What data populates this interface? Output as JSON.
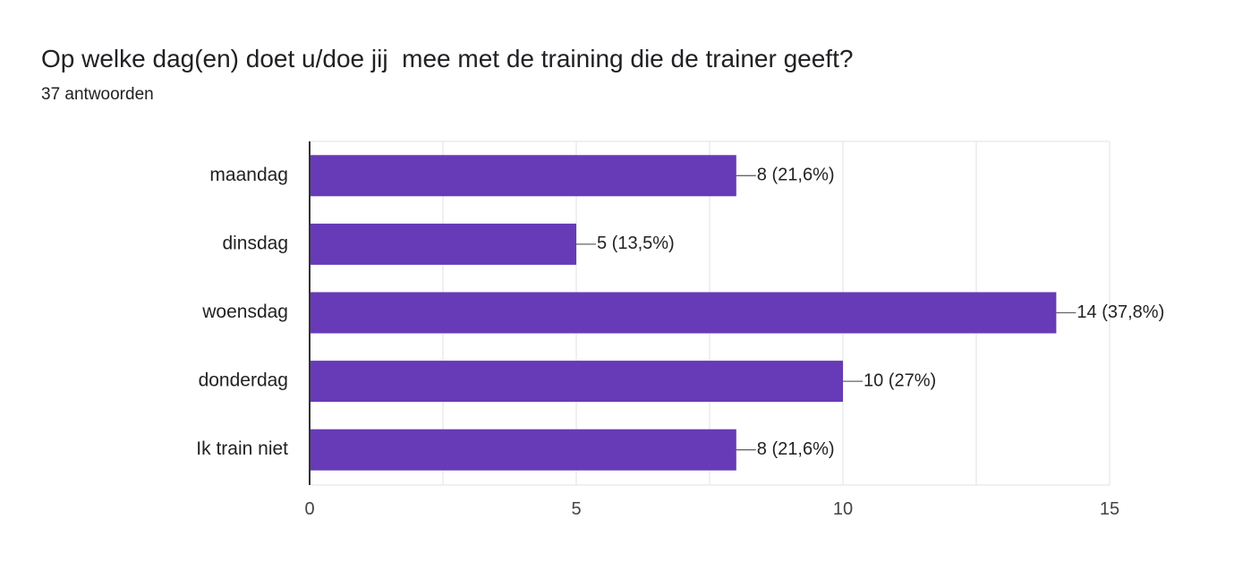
{
  "question": {
    "title": "Op welke dag(en) doet u/doe jij  mee met de training die de trainer geeft?",
    "responses": "37 antwoorden"
  },
  "colors": {
    "bar": "#673ab7",
    "grid": "#ebebeb",
    "axis": "#333333",
    "leader": "#666666"
  },
  "chart_data": {
    "type": "bar",
    "orientation": "horizontal",
    "categories": [
      "maandag",
      "dinsdag",
      "woensdag",
      "donderdag",
      "Ik train niet"
    ],
    "values": [
      8,
      5,
      14,
      10,
      8
    ],
    "data_labels": [
      "8 (21,6%)",
      "5 (13,5%)",
      "14 (37,8%)",
      "10 (27%)",
      "8 (21,6%)"
    ],
    "xlim": [
      0,
      15
    ],
    "xticks": [
      0,
      5,
      10,
      15
    ],
    "xtick_labels": [
      "0",
      "5",
      "10",
      "15"
    ],
    "grid": true,
    "xlabel": "",
    "ylabel": ""
  }
}
